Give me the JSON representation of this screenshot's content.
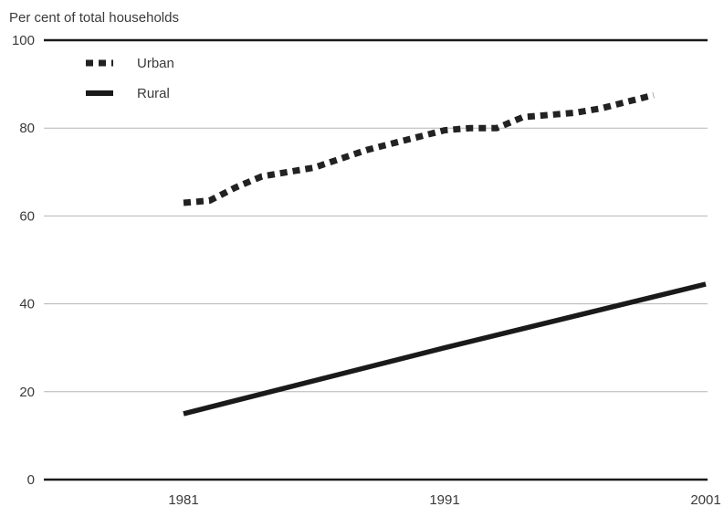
{
  "chart_data": {
    "type": "line",
    "title": "",
    "ylabel": "Per cent of total households",
    "xlabel": "",
    "ylim": [
      0,
      100
    ],
    "xlim": [
      1979,
      2001
    ],
    "yticks": [
      0,
      20,
      40,
      60,
      80,
      100
    ],
    "xticks": [
      1981,
      1991,
      2001
    ],
    "grid": true,
    "legend_position": "top-left",
    "series": [
      {
        "name": "Urban",
        "style": "dotted",
        "color": "#222222",
        "x": [
          1981,
          1982,
          1983,
          1984,
          1985,
          1986,
          1987,
          1988,
          1989,
          1990,
          1991,
          1992,
          1993,
          1994,
          1995,
          1996,
          1997,
          1998,
          1999,
          2000
        ],
        "y": [
          63,
          63.5,
          66.5,
          69,
          70,
          71,
          73,
          75,
          76.5,
          78,
          79.5,
          80,
          80,
          82.5,
          83,
          83.5,
          84.5,
          86,
          87.5,
          null
        ]
      },
      {
        "name": "Rural",
        "style": "solid",
        "color": "#1a1a1a",
        "x": [
          1981,
          1991,
          2001
        ],
        "y": [
          15,
          30,
          44.5
        ]
      }
    ]
  }
}
